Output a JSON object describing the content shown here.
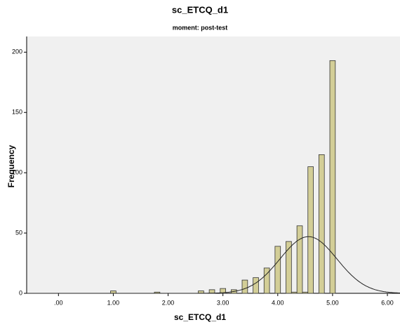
{
  "chart_data": {
    "type": "histogram",
    "title": "sc_ETCQ_d1",
    "subtitle": "moment: post-test",
    "x_label": "sc_ETCQ_d1",
    "y_label": "Frequency",
    "bins": [
      0.95,
      1.05,
      1.15,
      1.25,
      1.35,
      1.45,
      1.55,
      1.65,
      1.75,
      1.85,
      1.95,
      2.05,
      2.15,
      2.25,
      2.35,
      2.45,
      2.55,
      2.65,
      2.75,
      2.85,
      2.95,
      3.05,
      3.15,
      3.25,
      3.35,
      3.45,
      3.55,
      3.65,
      3.75,
      3.85,
      3.95,
      4.05,
      4.15,
      4.25,
      4.35,
      4.45,
      4.55,
      4.65,
      4.75,
      4.85,
      4.95,
      5.05
    ],
    "values": [
      2,
      0,
      0,
      0,
      0,
      0,
      0,
      0,
      1,
      0,
      0,
      0,
      0,
      0,
      0,
      0,
      2,
      0,
      3,
      0,
      4,
      0,
      3,
      0,
      11,
      0,
      13,
      0,
      21,
      0,
      39,
      0,
      43,
      1,
      56,
      1,
      105,
      0,
      115,
      0,
      193
    ],
    "color": "#d3ce97",
    "normal_curve": {
      "mean": 4.56,
      "sd": 0.52,
      "peak": 47
    },
    "xlim": [
      -0.58,
      6.23
    ],
    "ylim": [
      0,
      213
    ],
    "xticks": [
      {
        "value": 0,
        "label": ".00"
      },
      {
        "value": 1,
        "label": "1.00"
      },
      {
        "value": 2,
        "label": "2.00"
      },
      {
        "value": 3,
        "label": "3.00"
      },
      {
        "value": 4,
        "label": "4.00"
      },
      {
        "value": 5,
        "label": "5.00"
      },
      {
        "value": 6,
        "label": "6.00"
      }
    ],
    "yticks": [
      0,
      50,
      100,
      150,
      200
    ]
  }
}
